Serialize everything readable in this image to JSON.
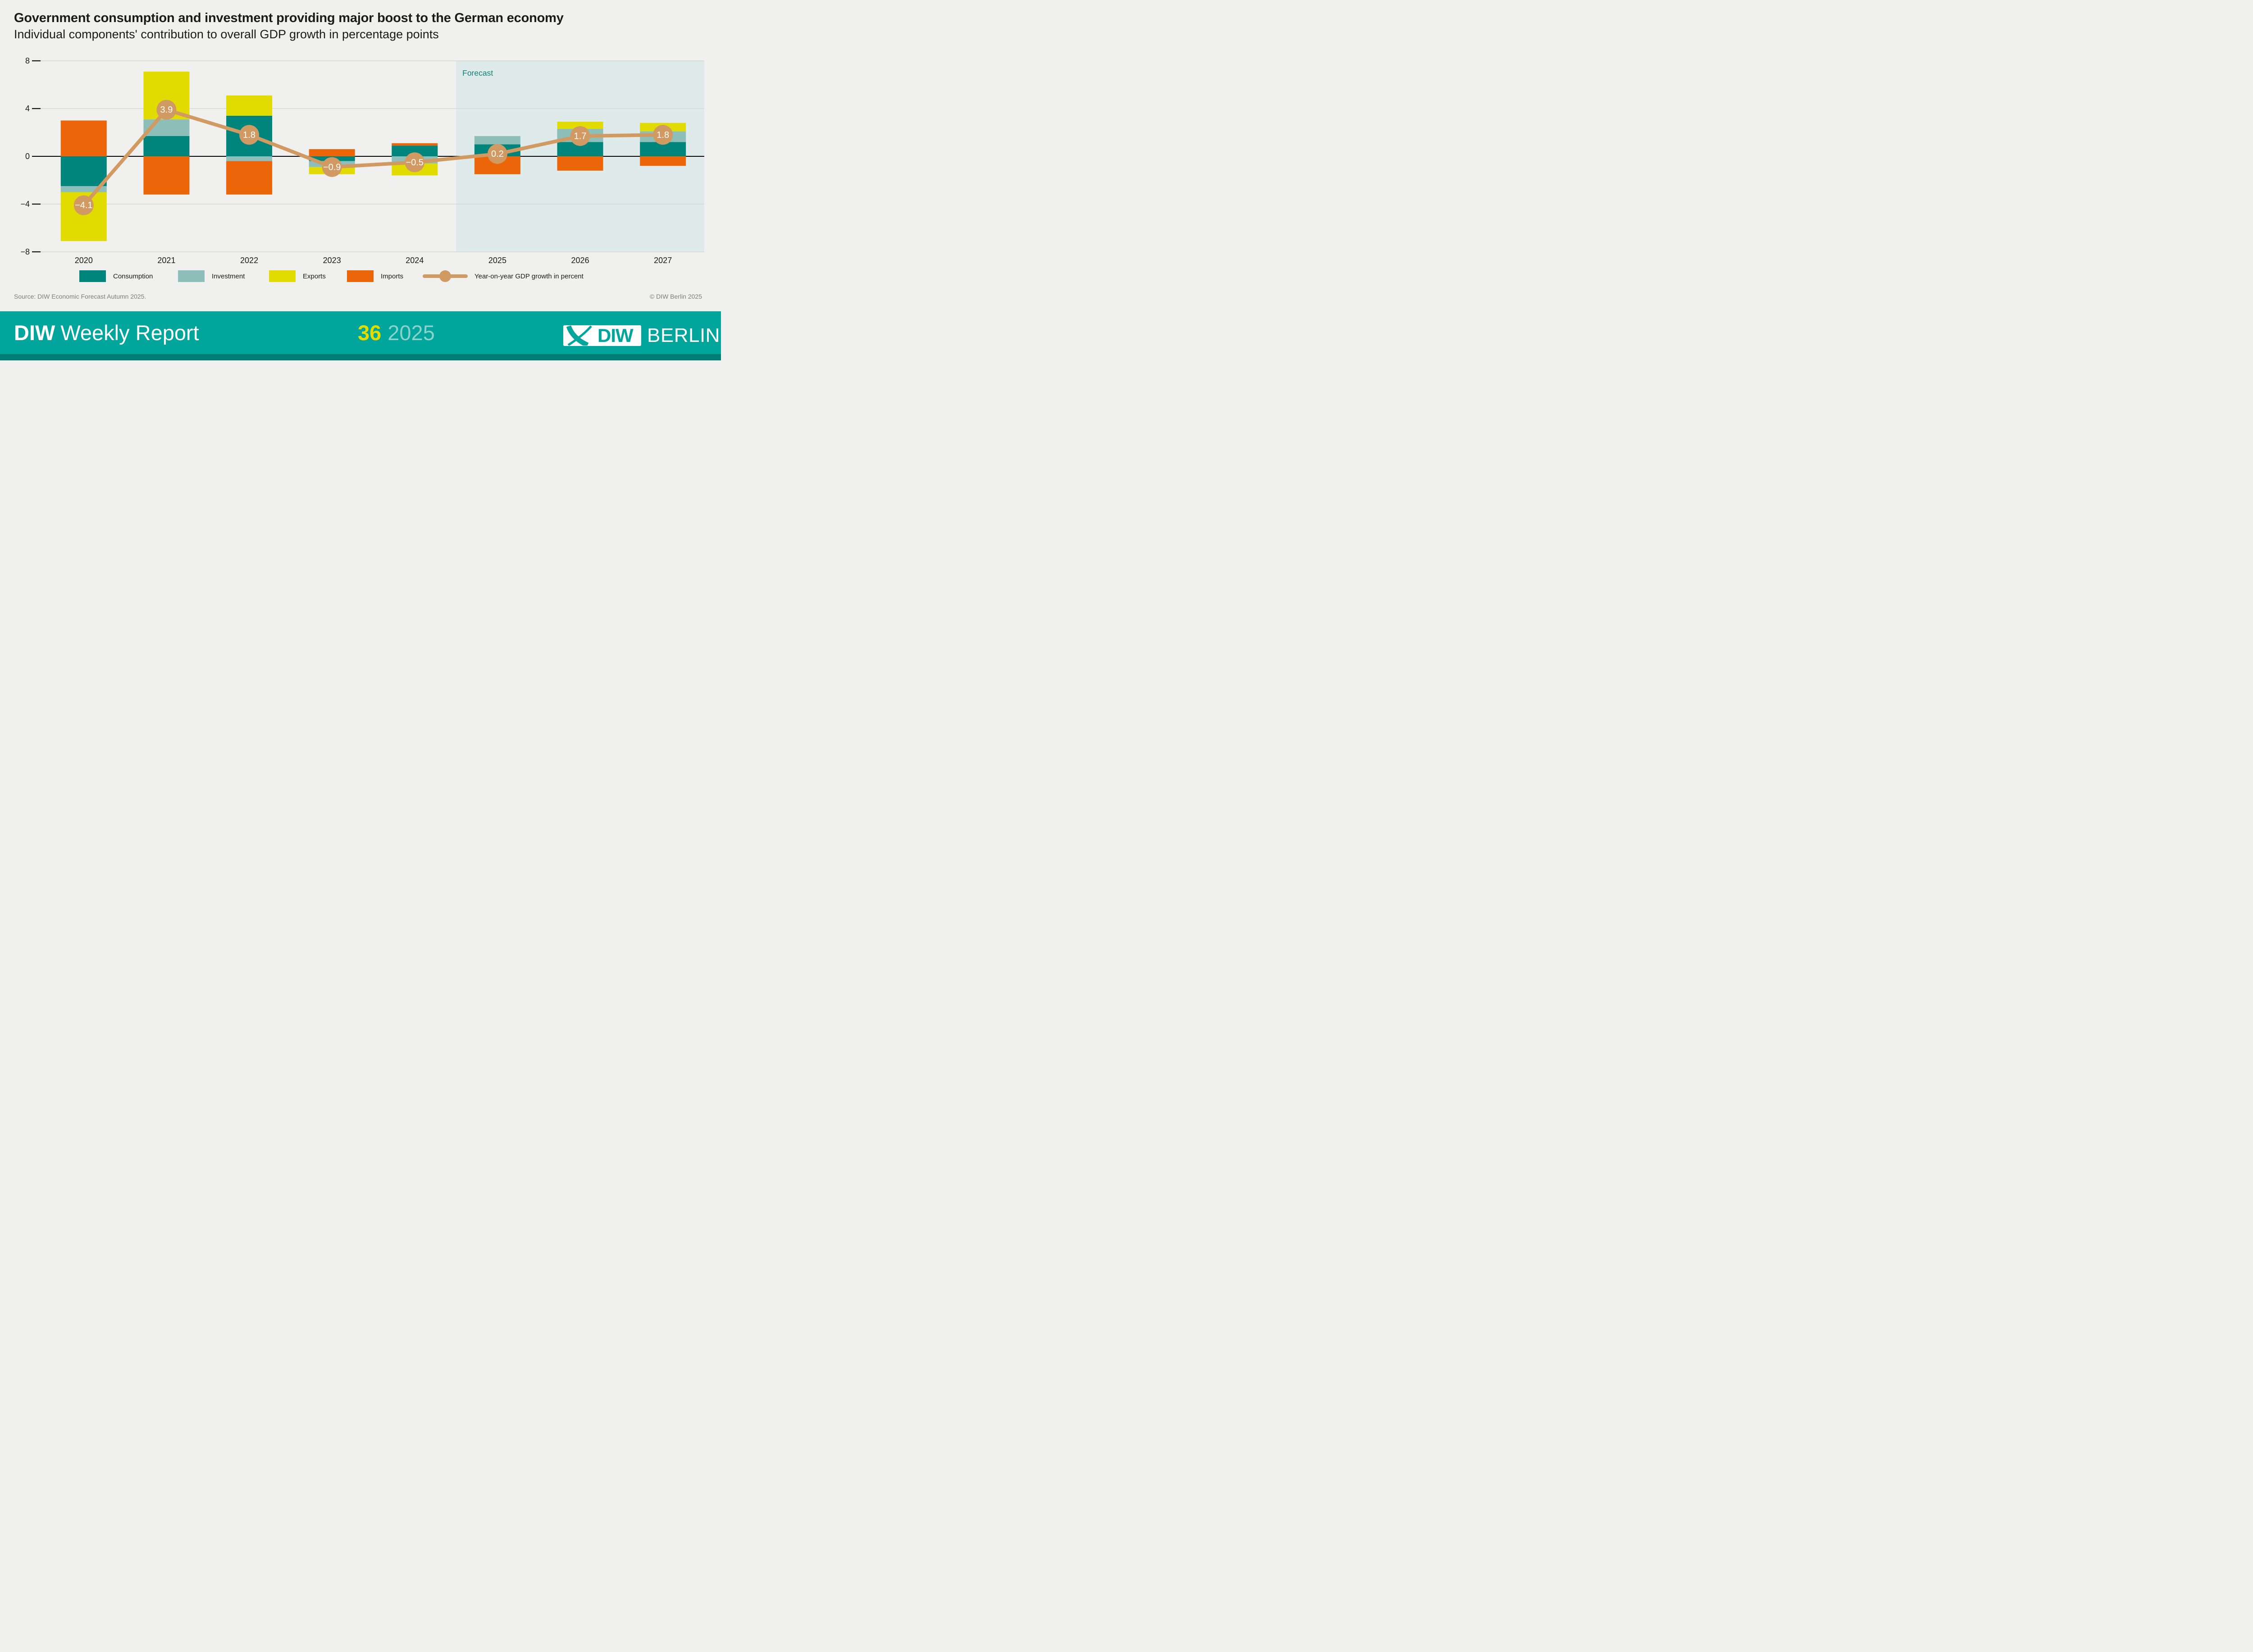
{
  "header": {
    "title": "Government consumption and investment providing major boost to the German economy",
    "subtitle": "Individual components' contribution to overall GDP growth in percentage points"
  },
  "chart_data": {
    "type": "bar",
    "stacked": true,
    "categories": [
      "2020",
      "2021",
      "2022",
      "2023",
      "2024",
      "2025",
      "2026",
      "2027"
    ],
    "series": [
      {
        "name": "Consumption",
        "color": "#00857d",
        "values": [
          -2.5,
          1.7,
          3.4,
          -0.4,
          0.9,
          1.0,
          1.2,
          1.2
        ]
      },
      {
        "name": "Investment",
        "color": "#8dbeb9",
        "values": [
          -0.5,
          1.4,
          -0.4,
          -0.5,
          -0.6,
          0.7,
          1.1,
          0.9
        ]
      },
      {
        "name": "Exports",
        "color": "#e2db00",
        "values": [
          -4.1,
          4.0,
          1.7,
          -0.6,
          -1.0,
          0.0,
          0.6,
          0.7
        ]
      },
      {
        "name": "Imports",
        "color": "#ec6508",
        "values": [
          3.0,
          -3.2,
          -2.8,
          0.6,
          0.2,
          -1.5,
          -1.2,
          -0.8
        ]
      }
    ],
    "line_series": {
      "name": "Year-on-year GDP growth in percent",
      "color": "#d09a62",
      "values": [
        -4.1,
        3.9,
        1.8,
        -0.9,
        -0.5,
        0.2,
        1.7,
        1.8
      ],
      "point_labels": [
        "−4.1",
        "3.9",
        "1.8",
        "−0.9",
        "−0.5",
        "0.2",
        "1.7",
        "1.8"
      ]
    },
    "ylim": [
      -8,
      8
    ],
    "yticks": [
      {
        "value": 8,
        "label": "8"
      },
      {
        "value": 4,
        "label": "4"
      },
      {
        "value": 0,
        "label": "0"
      },
      {
        "value": -4,
        "label": "−4"
      },
      {
        "value": -8,
        "label": "−8"
      }
    ],
    "grid": "horizontal",
    "legend_position": "bottom",
    "forecast": {
      "label": "Forecast",
      "start_index": 5,
      "bg": "#dfebea",
      "label_color": "#117c76"
    },
    "grid_color": "#d6d6d6",
    "zero_line_color": "#000000",
    "axis_text_color": "#1a1a1a"
  },
  "legend": {
    "items": [
      {
        "label": "Consumption",
        "swatch_color": "#00857d"
      },
      {
        "label": "Investment",
        "swatch_color": "#8dbeb9"
      },
      {
        "label": "Exports",
        "swatch_color": "#e2db00"
      },
      {
        "label": "Imports",
        "swatch_color": "#ec6508"
      }
    ],
    "line_item": {
      "label": "Year-on-year GDP growth in percent",
      "color": "#d09a62"
    }
  },
  "source": {
    "text": "Source: DIW Economic Forecast Autumn 2025.",
    "copyright": "© DIW Berlin 2025"
  },
  "footer": {
    "brand_bold": "DIW",
    "brand_rest": "Weekly Report",
    "issue": "36",
    "year": "2025",
    "logo_diw": "DIW",
    "logo_berlin": "BERLIN",
    "band_color": "#00a69b",
    "strip_color": "#007d75",
    "issue_color": "#e2db00",
    "year_color": "#8ad2cb"
  }
}
